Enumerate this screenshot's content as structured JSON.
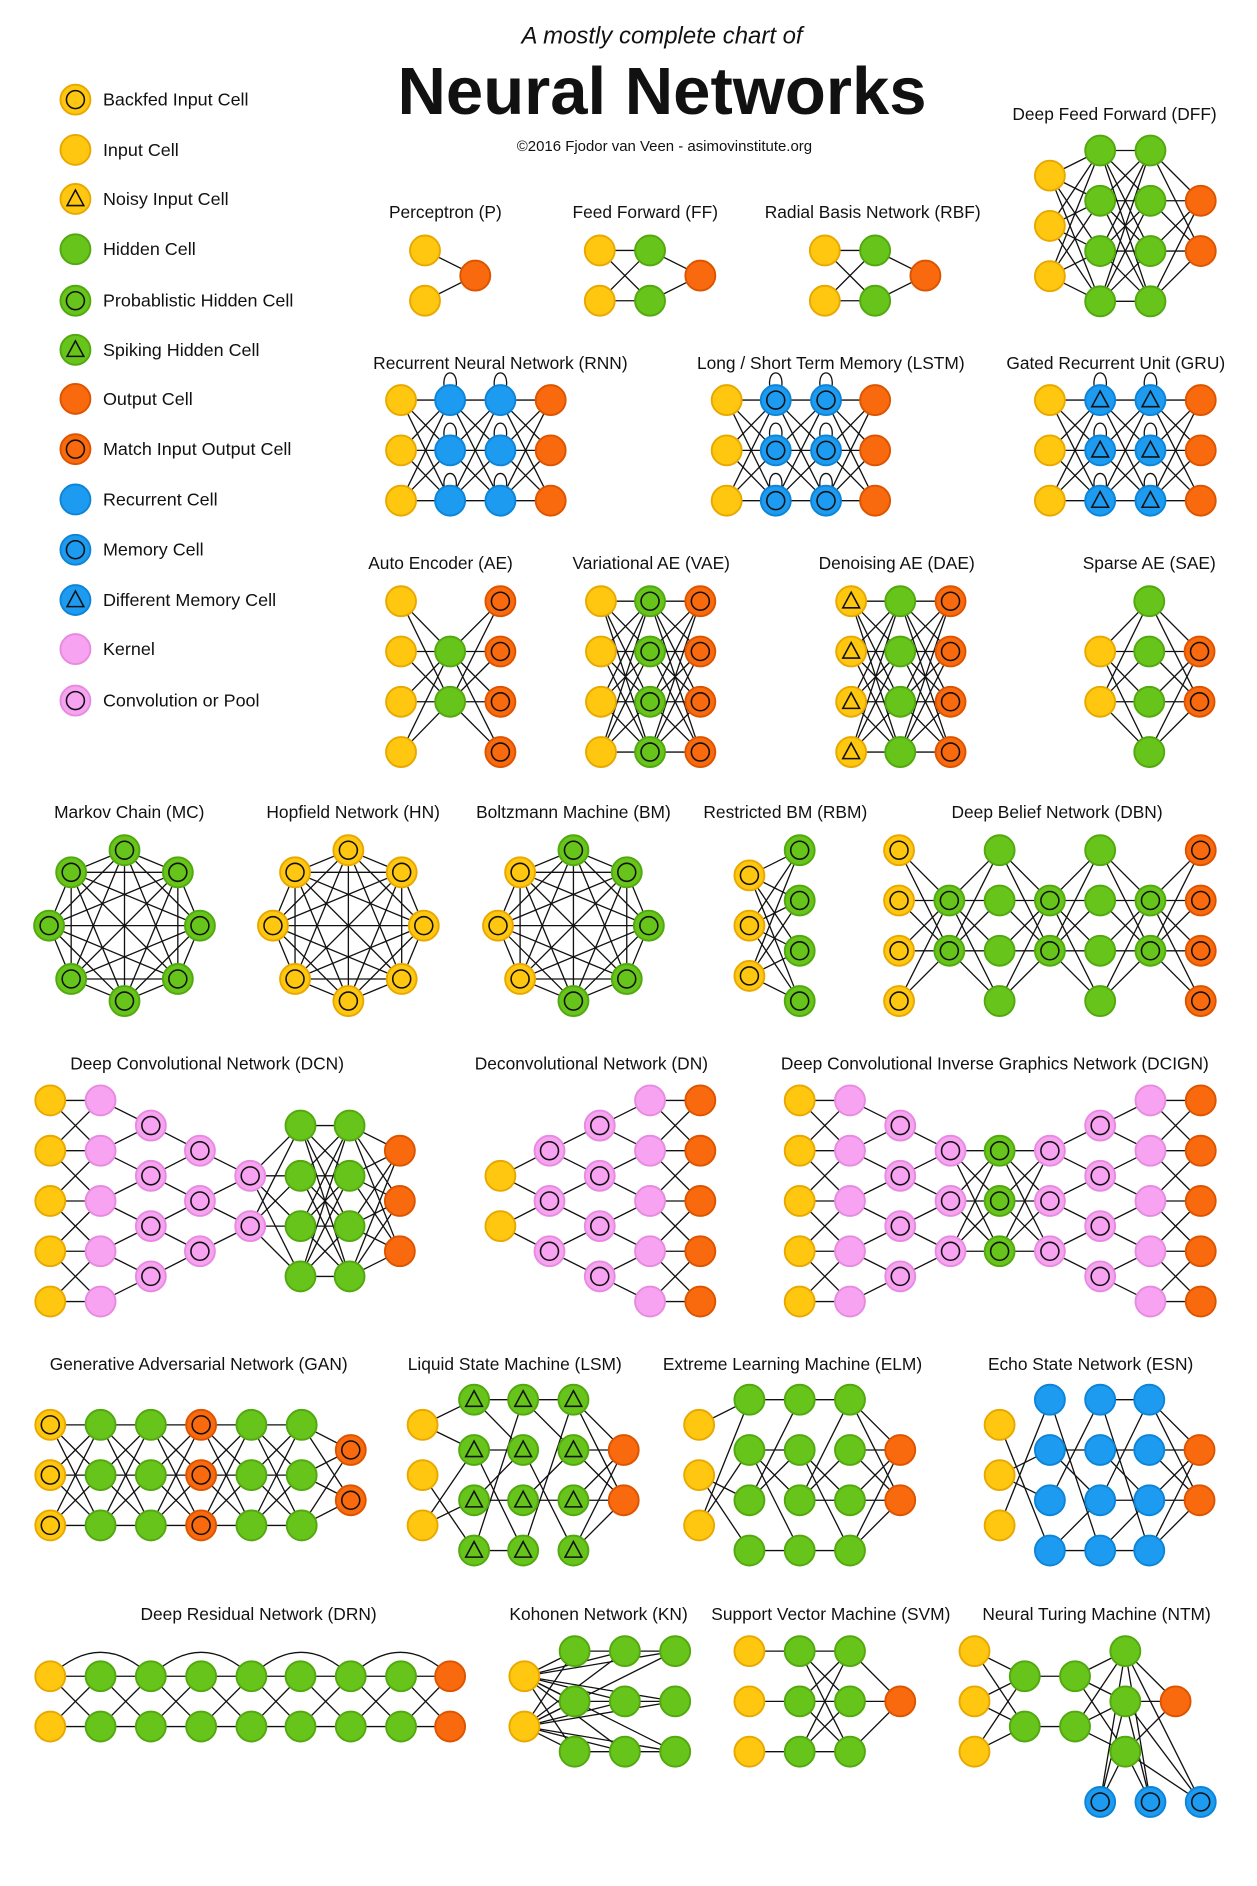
{
  "header": {
    "subtitle": "A mostly complete chart of",
    "title": "Neural Networks",
    "credit": "©2016 Fjodor van Veen - asimovinstitute.org"
  },
  "cells": {
    "bi": {
      "fill": "#FFC710",
      "stroke": "#E8A800",
      "symbol": "ring"
    },
    "in": {
      "fill": "#FFC710",
      "stroke": "#E8A800",
      "symbol": "none"
    },
    "ni": {
      "fill": "#FFC710",
      "stroke": "#E8A800",
      "symbol": "triangle"
    },
    "hd": {
      "fill": "#66C41A",
      "stroke": "#52A80E",
      "symbol": "none"
    },
    "ph": {
      "fill": "#66C41A",
      "stroke": "#52A80E",
      "symbol": "ring"
    },
    "sh": {
      "fill": "#66C41A",
      "stroke": "#52A80E",
      "symbol": "triangle"
    },
    "out": {
      "fill": "#F96A0E",
      "stroke": "#DC5400",
      "symbol": "none"
    },
    "mo": {
      "fill": "#F96A0E",
      "stroke": "#DC5400",
      "symbol": "ring"
    },
    "rc": {
      "fill": "#1C9BF0",
      "stroke": "#0E84D6",
      "symbol": "none"
    },
    "mc": {
      "fill": "#1C9BF0",
      "stroke": "#0E84D6",
      "symbol": "ring"
    },
    "dm": {
      "fill": "#1C9BF0",
      "stroke": "#0E84D6",
      "symbol": "triangle"
    },
    "k": {
      "fill": "#F7A3F1",
      "stroke": "#E68BE0",
      "symbol": "none"
    },
    "cp": {
      "fill": "#F7A3F1",
      "stroke": "#E68BE0",
      "symbol": "ring"
    }
  },
  "legend": [
    {
      "label": "Backfed Input Cell",
      "cell": "bi"
    },
    {
      "label": "Input Cell",
      "cell": "in"
    },
    {
      "label": "Noisy Input Cell",
      "cell": "ni"
    },
    {
      "label": "Hidden Cell",
      "cell": "hd"
    },
    {
      "label": "Probablistic Hidden Cell",
      "cell": "ph"
    },
    {
      "label": "Spiking Hidden Cell",
      "cell": "sh"
    },
    {
      "label": "Output Cell",
      "cell": "out"
    },
    {
      "label": "Match Input Output Cell",
      "cell": "mo"
    },
    {
      "label": "Recurrent Cell",
      "cell": "rc"
    },
    {
      "label": "Memory Cell",
      "cell": "mc"
    },
    {
      "label": "Different Memory Cell",
      "cell": "dm"
    },
    {
      "label": "Kernel",
      "cell": "k"
    },
    {
      "label": "Convolution or Pool",
      "cell": "cp"
    }
  ],
  "networks": [
    {
      "id": "P",
      "title": "Perceptron (P)",
      "layers": [
        [
          "in",
          "in"
        ],
        [
          "out"
        ]
      ],
      "links": [
        "full"
      ]
    },
    {
      "id": "FF",
      "title": "Feed Forward (FF)",
      "layers": [
        [
          "in",
          "in"
        ],
        [
          "hd",
          "hd"
        ],
        [
          "out"
        ]
      ],
      "links": [
        "full",
        "full"
      ]
    },
    {
      "id": "RBF",
      "title": "Radial Basis Network (RBF)",
      "layers": [
        [
          "in",
          "in"
        ],
        [
          "hd",
          "hd"
        ],
        [
          "out"
        ]
      ],
      "links": [
        "full",
        "full"
      ]
    },
    {
      "id": "DFF",
      "title": "Deep Feed Forward (DFF)",
      "layers": [
        [
          "in",
          "in",
          "in"
        ],
        [
          "hd",
          "hd",
          "hd",
          "hd"
        ],
        [
          "hd",
          "hd",
          "hd",
          "hd"
        ],
        [
          "out",
          "out"
        ]
      ],
      "links": [
        "full",
        "full",
        "full"
      ]
    },
    {
      "id": "RNN",
      "title": "Recurrent Neural Network (RNN)",
      "layers": [
        [
          "in",
          "in",
          "in"
        ],
        [
          "rc",
          "rc",
          "rc"
        ],
        [
          "rc",
          "rc",
          "rc"
        ],
        [
          "out",
          "out",
          "out"
        ]
      ],
      "links": [
        "full",
        "full",
        "full"
      ],
      "loops": true
    },
    {
      "id": "LSTM",
      "title": "Long / Short Term Memory (LSTM)",
      "layers": [
        [
          "in",
          "in",
          "in"
        ],
        [
          "mc",
          "mc",
          "mc"
        ],
        [
          "mc",
          "mc",
          "mc"
        ],
        [
          "out",
          "out",
          "out"
        ]
      ],
      "links": [
        "full",
        "full",
        "full"
      ],
      "loops": true
    },
    {
      "id": "GRU",
      "title": "Gated Recurrent Unit (GRU)",
      "layers": [
        [
          "in",
          "in",
          "in"
        ],
        [
          "dm",
          "dm",
          "dm"
        ],
        [
          "dm",
          "dm",
          "dm"
        ],
        [
          "out",
          "out",
          "out"
        ]
      ],
      "links": [
        "full",
        "full",
        "full"
      ],
      "loops": true
    },
    {
      "id": "AE",
      "title": "Auto Encoder (AE)",
      "layers": [
        [
          "in",
          "in",
          "in",
          "in"
        ],
        [
          "hd",
          "hd"
        ],
        [
          "mo",
          "mo",
          "mo",
          "mo"
        ]
      ],
      "links": [
        "full",
        "full"
      ]
    },
    {
      "id": "VAE",
      "title": "Variational AE (VAE)",
      "layers": [
        [
          "in",
          "in",
          "in",
          "in"
        ],
        [
          "ph",
          "ph",
          "ph",
          "ph"
        ],
        [
          "mo",
          "mo",
          "mo",
          "mo"
        ]
      ],
      "links": [
        "full",
        "full"
      ]
    },
    {
      "id": "DAE",
      "title": "Denoising AE (DAE)",
      "layers": [
        [
          "ni",
          "ni",
          "ni",
          "ni"
        ],
        [
          "hd",
          "hd",
          "hd",
          "hd"
        ],
        [
          "mo",
          "mo",
          "mo",
          "mo"
        ]
      ],
      "links": [
        "full",
        "full"
      ]
    },
    {
      "id": "SAE",
      "title": "Sparse AE (SAE)",
      "layers": [
        [
          "in",
          "in"
        ],
        [
          "hd",
          "hd",
          "hd",
          "hd"
        ],
        [
          "mo",
          "mo"
        ]
      ],
      "links": [
        "full",
        "full"
      ]
    },
    {
      "id": "MC",
      "title": "Markov Chain (MC)",
      "ring": [
        "ph",
        "ph",
        "ph",
        "ph",
        "ph",
        "ph",
        "ph",
        "ph"
      ]
    },
    {
      "id": "HN",
      "title": "Hopfield Network (HN)",
      "ring": [
        "bi",
        "bi",
        "bi",
        "bi",
        "bi",
        "bi",
        "bi",
        "bi"
      ]
    },
    {
      "id": "BM",
      "title": "Boltzmann Machine (BM)",
      "ring": [
        "ph",
        "ph",
        "ph",
        "ph",
        "ph",
        "bi",
        "bi",
        "bi"
      ]
    },
    {
      "id": "RBM",
      "title": "Restricted BM (RBM)",
      "layers": [
        [
          "bi",
          "bi",
          "bi"
        ],
        [
          "ph",
          "ph",
          "ph",
          "ph"
        ]
      ],
      "links": [
        "full"
      ]
    },
    {
      "id": "DBN",
      "title": "Deep Belief Network (DBN)",
      "layers": [
        [
          "bi",
          "bi",
          "bi",
          "bi"
        ],
        [
          "ph",
          "ph"
        ],
        [
          "hd",
          "hd",
          "hd",
          "hd"
        ],
        [
          "ph",
          "ph"
        ],
        [
          "hd",
          "hd",
          "hd",
          "hd"
        ],
        [
          "ph",
          "ph"
        ],
        [
          "mo",
          "mo",
          "mo",
          "mo"
        ]
      ],
      "links": [
        "full",
        "full",
        "full",
        "full",
        "full",
        "full"
      ]
    },
    {
      "id": "DCN",
      "title": "Deep Convolutional Network (DCN)",
      "layers": [
        [
          "in",
          "in",
          "in",
          "in",
          "in"
        ],
        [
          "k",
          "k",
          "k",
          "k",
          "k"
        ],
        [
          "cp",
          "cp",
          "cp",
          "cp"
        ],
        [
          "cp",
          "cp",
          "cp"
        ],
        [
          "cp",
          "cp"
        ],
        [
          "hd",
          "hd",
          "hd",
          "hd"
        ],
        [
          "hd",
          "hd",
          "hd",
          "hd"
        ],
        [
          "out",
          "out",
          "out"
        ]
      ],
      "links": [
        "near",
        "conv",
        "conv",
        "conv",
        "full",
        "full",
        "full"
      ]
    },
    {
      "id": "DN",
      "title": "Deconvolutional Network (DN)",
      "layers": [
        [
          "in",
          "in"
        ],
        [
          "cp",
          "cp",
          "cp"
        ],
        [
          "cp",
          "cp",
          "cp",
          "cp"
        ],
        [
          "k",
          "k",
          "k",
          "k",
          "k"
        ],
        [
          "out",
          "out",
          "out",
          "out",
          "out"
        ]
      ],
      "links": [
        "conv",
        "conv",
        "conv",
        "near"
      ]
    },
    {
      "id": "DCIGN",
      "title": "Deep Convolutional Inverse Graphics Network (DCIGN)",
      "layers": [
        [
          "in",
          "in",
          "in",
          "in",
          "in"
        ],
        [
          "k",
          "k",
          "k",
          "k",
          "k"
        ],
        [
          "cp",
          "cp",
          "cp",
          "cp"
        ],
        [
          "cp",
          "cp",
          "cp"
        ],
        [
          "ph",
          "ph",
          "ph"
        ],
        [
          "cp",
          "cp",
          "cp"
        ],
        [
          "cp",
          "cp",
          "cp",
          "cp"
        ],
        [
          "k",
          "k",
          "k",
          "k",
          "k"
        ],
        [
          "out",
          "out",
          "out",
          "out",
          "out"
        ]
      ],
      "links": [
        "near",
        "conv",
        "conv",
        "full",
        "full",
        "conv",
        "conv",
        "near"
      ]
    },
    {
      "id": "GAN",
      "title": "Generative Adversarial Network (GAN)",
      "layers": [
        [
          "bi",
          "bi",
          "bi"
        ],
        [
          "hd",
          "hd",
          "hd"
        ],
        [
          "hd",
          "hd",
          "hd"
        ],
        [
          "mo",
          "mo",
          "mo"
        ],
        [
          "hd",
          "hd",
          "hd"
        ],
        [
          "hd",
          "hd",
          "hd"
        ],
        [
          "mo",
          "mo"
        ]
      ],
      "links": [
        "full",
        "full",
        "full",
        "full",
        "full",
        "full"
      ]
    },
    {
      "id": "LSM",
      "title": "Liquid State Machine (LSM)",
      "layers": [
        [
          "in",
          "in",
          "in"
        ],
        [
          "sh",
          "sh",
          "sh",
          "sh"
        ],
        [
          "sh",
          "sh",
          "sh",
          "sh"
        ],
        [
          "sh",
          "sh",
          "sh",
          "sh"
        ],
        [
          "out",
          "out"
        ]
      ],
      "links": [
        "sparse",
        "sparse",
        "sparse",
        "full"
      ]
    },
    {
      "id": "ELM",
      "title": "Extreme Learning Machine (ELM)",
      "layers": [
        [
          "in",
          "in",
          "in"
        ],
        [
          "hd",
          "hd",
          "hd",
          "hd"
        ],
        [
          "hd",
          "hd",
          "hd",
          "hd"
        ],
        [
          "hd",
          "hd",
          "hd",
          "hd"
        ],
        [
          "out",
          "out"
        ]
      ],
      "links": [
        "sparse",
        "sparse",
        "sparse",
        "full"
      ]
    },
    {
      "id": "ESN",
      "title": "Echo State Network (ESN)",
      "layers": [
        [
          "in",
          "in",
          "in"
        ],
        [
          "rc",
          "rc",
          "rc",
          "rc"
        ],
        [
          "rc",
          "rc",
          "rc",
          "rc"
        ],
        [
          "rc",
          "rc",
          "rc",
          "rc"
        ],
        [
          "out",
          "out"
        ]
      ],
      "links": [
        "sparse",
        "sparse",
        "sparse",
        "full"
      ]
    },
    {
      "id": "DRN",
      "title": "Deep Residual Network (DRN)",
      "layers": [
        [
          "in",
          "in"
        ],
        [
          "hd",
          "hd"
        ],
        [
          "hd",
          "hd"
        ],
        [
          "hd",
          "hd"
        ],
        [
          "hd",
          "hd"
        ],
        [
          "hd",
          "hd"
        ],
        [
          "hd",
          "hd"
        ],
        [
          "hd",
          "hd"
        ],
        [
          "out",
          "out"
        ]
      ],
      "links": [
        "full",
        "full",
        "full",
        "full",
        "full",
        "full",
        "full",
        "full"
      ],
      "skips": true
    },
    {
      "id": "KN",
      "title": "Kohonen Network (KN)",
      "layers": [
        [
          "in",
          "in"
        ],
        [
          "hd",
          "hd",
          "hd"
        ],
        [
          "hd",
          "hd",
          "hd"
        ],
        [
          "hd",
          "hd",
          "hd"
        ]
      ],
      "links": [
        "all",
        "straight",
        "straight"
      ]
    },
    {
      "id": "SVM",
      "title": "Support Vector Machine (SVM)",
      "layers": [
        [
          "in",
          "in",
          "in"
        ],
        [
          "hd",
          "hd",
          "hd"
        ],
        [
          "hd",
          "hd",
          "hd"
        ],
        [
          "out"
        ]
      ],
      "links": [
        "straight",
        "full",
        "full"
      ]
    },
    {
      "id": "NTM",
      "title": "Neural Turing Machine (NTM)",
      "layers": [
        [
          "in",
          "in",
          "in"
        ],
        [
          "hd",
          "hd"
        ],
        [
          "hd",
          "hd"
        ],
        [
          "hd",
          "hd",
          "hd"
        ],
        [
          "out"
        ]
      ],
      "links": [
        "full",
        "straight",
        "full",
        "full"
      ],
      "memory": [
        "mc",
        "mc",
        "mc"
      ]
    }
  ]
}
